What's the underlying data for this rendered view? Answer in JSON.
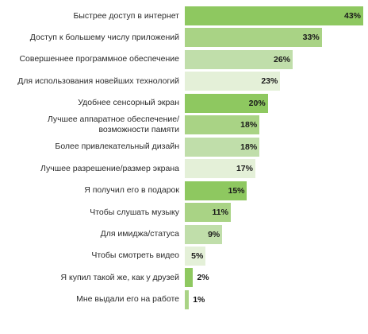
{
  "chart_data": {
    "type": "bar",
    "orientation": "horizontal",
    "categories": [
      "Быстрее доступ в интернет",
      "Доступ к большему числу приложений",
      "Совершеннее программное обеспечение",
      "Для использования новейших технологий",
      "Удобнее сенсорный экран",
      "Лучшее аппаратное обеспечение/\nвозможности памяти",
      "Более привлекательный дизайн",
      "Лучшее разрешение/размер экрана",
      "Я получил его в подарок",
      "Чтобы слушать музыку",
      "Для имиджа/статуса",
      "Чтобы смотреть видео",
      "Я купил такой же, как у друзей",
      "Мне выдали его на работе"
    ],
    "values": [
      43,
      33,
      26,
      23,
      20,
      18,
      18,
      17,
      15,
      11,
      9,
      5,
      2,
      1
    ],
    "value_labels": [
      "43%",
      "33%",
      "26%",
      "23%",
      "20%",
      "18%",
      "18%",
      "17%",
      "15%",
      "11%",
      "9%",
      "5%",
      "2%",
      "1%"
    ],
    "bar_colors": [
      "#8ec860",
      "#a9d385",
      "#c0deaa",
      "#e4f0d8",
      "#8ec860",
      "#a9d385",
      "#c0deaa",
      "#e4f0d8",
      "#8ec860",
      "#a9d385",
      "#c0deaa",
      "#e4f0d8",
      "#8ec860",
      "#a9d385"
    ],
    "title": "",
    "xlabel": "",
    "ylabel": "",
    "xlim": [
      0,
      43
    ],
    "grid": false,
    "legend": "none"
  }
}
